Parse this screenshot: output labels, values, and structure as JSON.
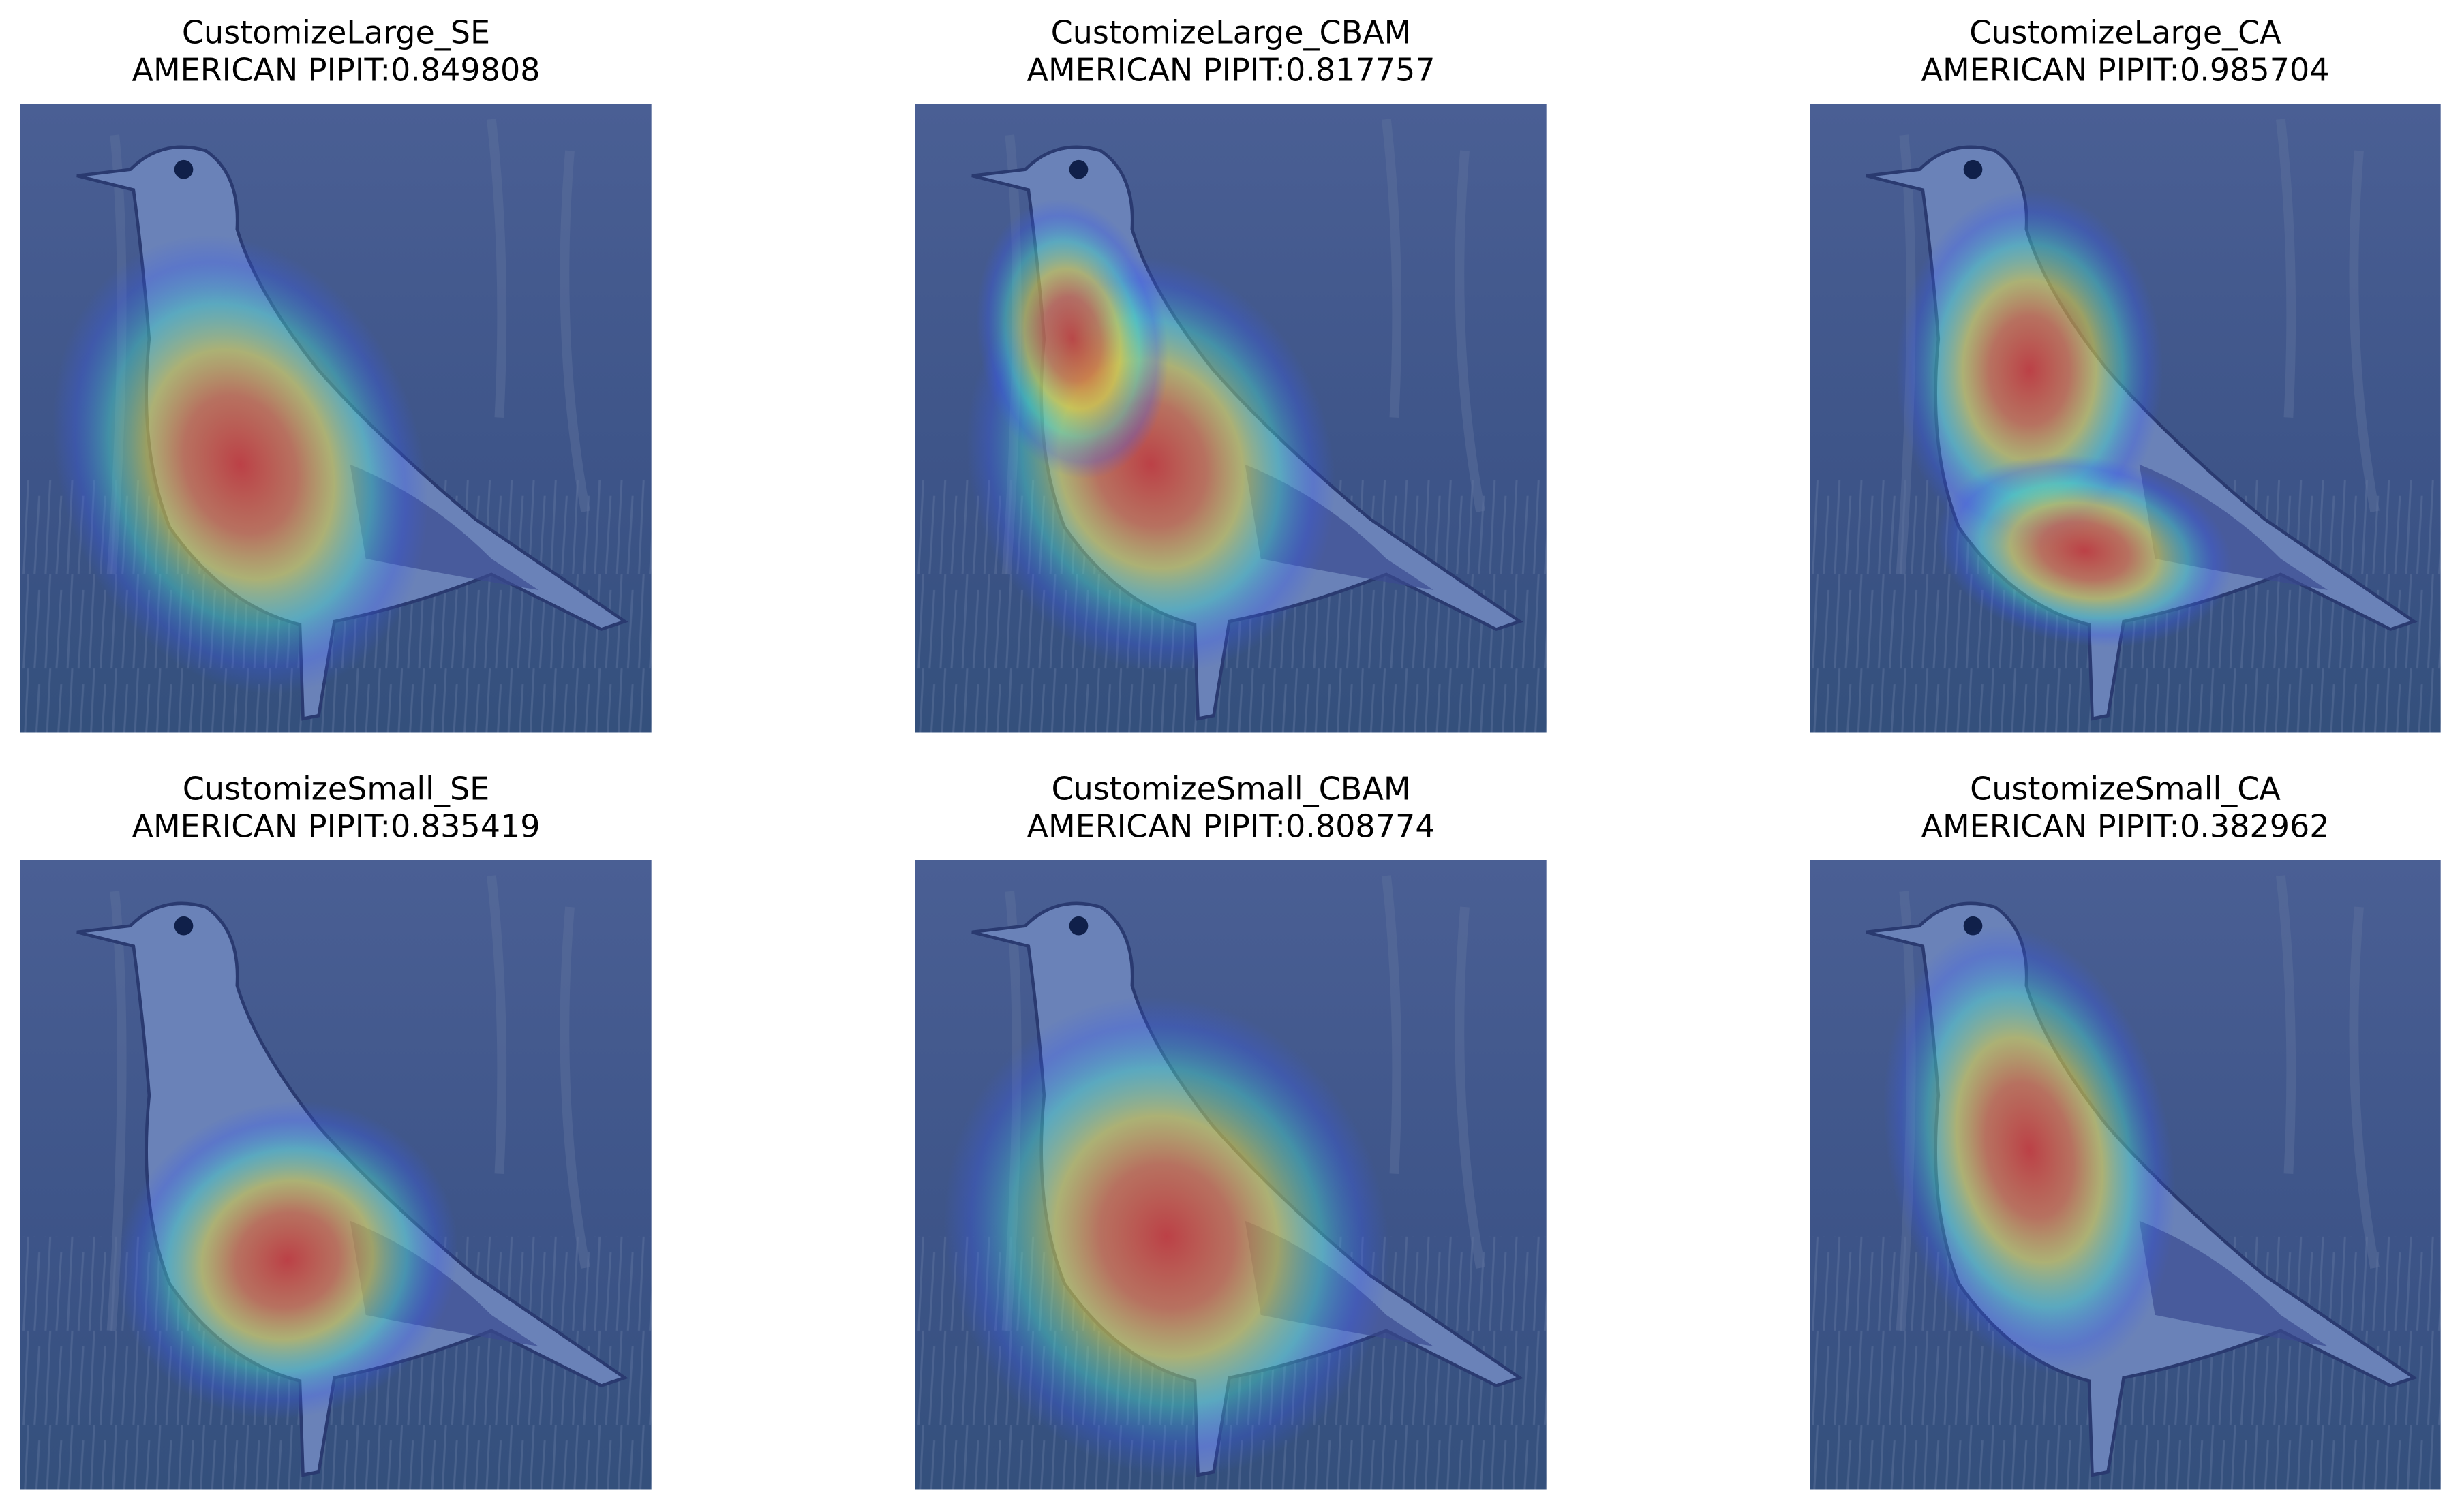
{
  "panels": [
    {
      "model": "CustomizeLarge_SE",
      "prediction": "AMERICAN PIPIT:0.849808"
    },
    {
      "model": "CustomizeLarge_CBAM",
      "prediction": "AMERICAN PIPIT:0.817757"
    },
    {
      "model": "CustomizeLarge_CA",
      "prediction": "AMERICAN PIPIT:0.985704"
    },
    {
      "model": "CustomizeSmall_SE",
      "prediction": "AMERICAN PIPIT:0.835419"
    },
    {
      "model": "CustomizeSmall_CBAM",
      "prediction": "AMERICAN PIPIT:0.808774"
    },
    {
      "model": "CustomizeSmall_CA",
      "prediction": "AMERICAN PIPIT:0.382962"
    }
  ]
}
